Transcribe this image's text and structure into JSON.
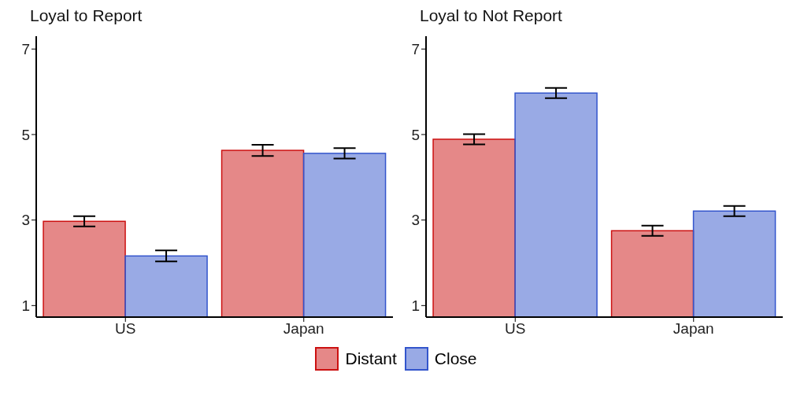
{
  "chart_data": [
    {
      "type": "bar",
      "title": "Loyal to Report",
      "categories": [
        "US",
        "Japan"
      ],
      "ylim": [
        0.73,
        7.3
      ],
      "yticks": [
        1,
        3,
        5,
        7
      ],
      "grid": false,
      "legend": "bottom",
      "series": [
        {
          "name": "Distant",
          "color": "#cc1111",
          "values": [
            2.97,
            4.63
          ],
          "errors": [
            0.12,
            0.13
          ]
        },
        {
          "name": "Close",
          "color": "#3355cc",
          "values": [
            2.16,
            4.56
          ],
          "errors": [
            0.13,
            0.12
          ]
        }
      ]
    },
    {
      "type": "bar",
      "title": "Loyal to Not Report",
      "categories": [
        "US",
        "Japan"
      ],
      "ylim": [
        0.73,
        7.3
      ],
      "yticks": [
        1,
        3,
        5,
        7
      ],
      "grid": false,
      "series": [
        {
          "color": "#cc1111",
          "values": [
            4.89,
            2.75
          ],
          "errors": [
            0.12,
            0.12
          ]
        },
        {
          "color": "#3355cc",
          "values": [
            5.97,
            3.21
          ],
          "errors": [
            0.12,
            0.12
          ]
        }
      ]
    }
  ]
}
